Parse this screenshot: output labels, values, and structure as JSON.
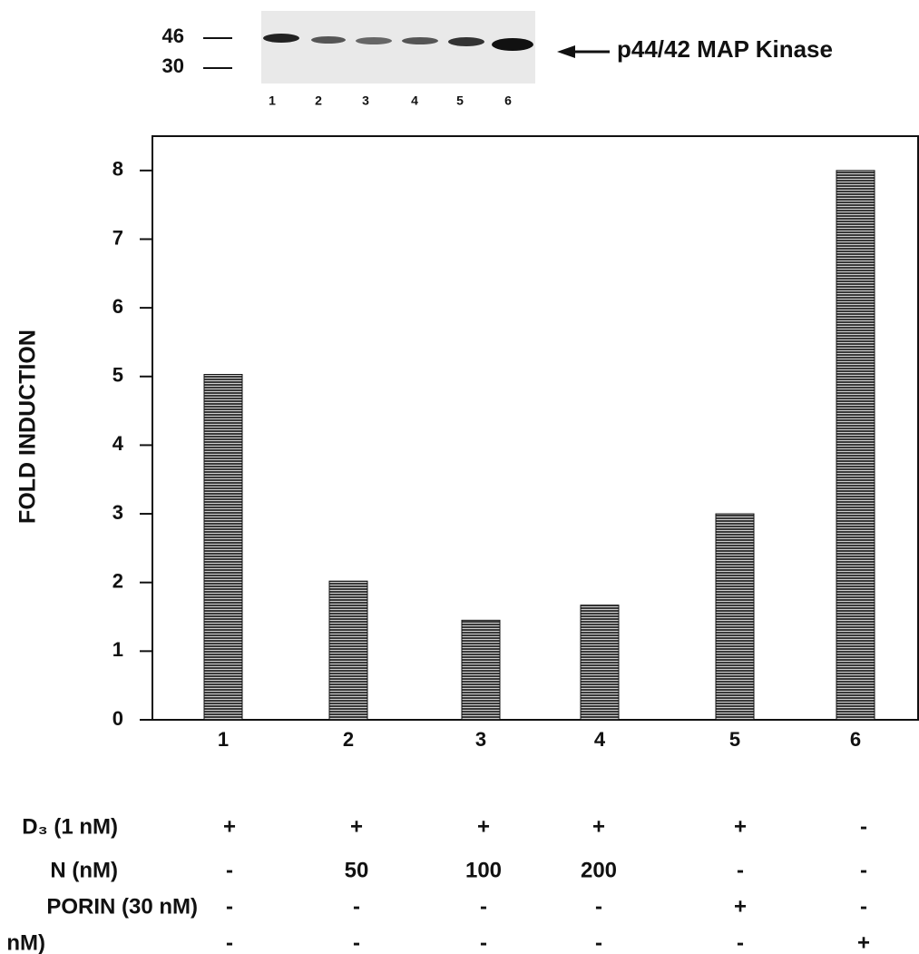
{
  "blot": {
    "markers": [
      "46",
      "30"
    ],
    "lanes": [
      "1",
      "2",
      "3",
      "4",
      "5",
      "6"
    ],
    "label": "p44/42 MAP Kinase"
  },
  "chart_data": {
    "type": "bar",
    "y_label": "FOLD INDUCTION",
    "categories": [
      "1",
      "2",
      "3",
      "4",
      "5",
      "6"
    ],
    "values": [
      5.03,
      2.02,
      1.45,
      1.67,
      3.0,
      8.0
    ],
    "color": "#3a3a3a",
    "ylim": [
      0,
      8.5
    ],
    "yticks": [
      0,
      1,
      2,
      3,
      4,
      5,
      6,
      7,
      8
    ],
    "grid": false
  },
  "treatments": {
    "rows": [
      {
        "label": "D₃ (1 nM)",
        "cells": [
          "+",
          "+",
          "+",
          "+",
          "+",
          "-"
        ]
      },
      {
        "label": "N (nM)",
        "cells": [
          "-",
          "50",
          "100",
          "200",
          "-",
          "-"
        ]
      },
      {
        "label": "PORIN (30 nM)",
        "cells": [
          "-",
          "-",
          "-",
          "-",
          "+",
          "-"
        ]
      },
      {
        "label": "nM)",
        "cells": [
          "-",
          "-",
          "-",
          "-",
          "-",
          "+"
        ]
      }
    ]
  }
}
